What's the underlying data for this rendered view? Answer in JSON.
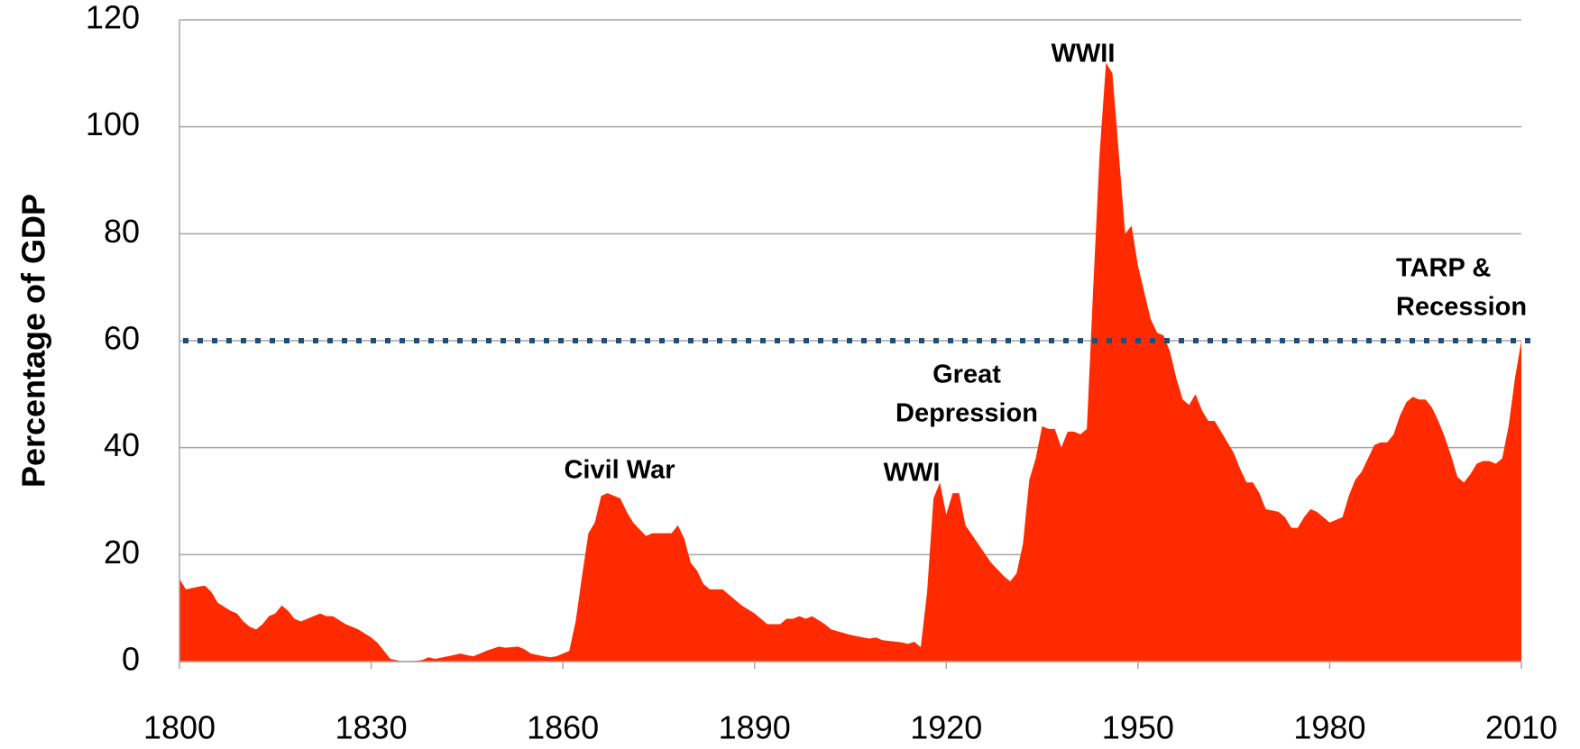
{
  "chart_data": {
    "type": "area",
    "y_label": "Percentage of GDP",
    "color": "#ff2a00",
    "x": [
      1800,
      1801,
      1803,
      1804,
      1805,
      1806,
      1808,
      1809,
      1810,
      1811,
      1812,
      1813,
      1814,
      1815,
      1816,
      1817,
      1818,
      1819,
      1820,
      1822,
      1823,
      1824,
      1826,
      1827,
      1828,
      1830,
      1831,
      1832,
      1833,
      1835,
      1836,
      1838,
      1839,
      1840,
      1842,
      1844,
      1845,
      1846,
      1848,
      1850,
      1851,
      1853,
      1854,
      1855,
      1857,
      1858,
      1859,
      1861,
      1862,
      1863,
      1864,
      1865,
      1866,
      1867,
      1868,
      1869,
      1870,
      1871,
      1873,
      1874,
      1875,
      1876,
      1877,
      1878,
      1879,
      1880,
      1881,
      1882,
      1883,
      1885,
      1886,
      1888,
      1890,
      1892,
      1893,
      1894,
      1895,
      1896,
      1897,
      1898,
      1899,
      1901,
      1902,
      1905,
      1907,
      1908,
      1909,
      1910,
      1913,
      1914,
      1915,
      1916,
      1917,
      1918,
      1919,
      1920,
      1921,
      1922,
      1923,
      1925,
      1927,
      1929,
      1930,
      1931,
      1932,
      1933,
      1934,
      1935,
      1936,
      1937,
      1938,
      1939,
      1940,
      1941,
      1942,
      1943,
      1944,
      1945,
      1946,
      1947,
      1948,
      1949,
      1950,
      1952,
      1953,
      1954,
      1955,
      1956,
      1957,
      1958,
      1959,
      1960,
      1961,
      1962,
      1963,
      1964,
      1965,
      1966,
      1967,
      1968,
      1969,
      1970,
      1972,
      1973,
      1974,
      1975,
      1976,
      1977,
      1978,
      1979,
      1980,
      1981,
      1982,
      1983,
      1984,
      1985,
      1986,
      1987,
      1988,
      1989,
      1990,
      1991,
      1992,
      1993,
      1994,
      1995,
      1996,
      1997,
      1998,
      1999,
      2000,
      2001,
      2002,
      2003,
      2004,
      2005,
      2006,
      2007,
      2008,
      2009,
      2010
    ],
    "values": [
      15.5,
      13.5,
      14,
      14.2,
      13,
      11,
      9.5,
      9,
      7.5,
      6.5,
      6,
      7,
      8.5,
      9,
      10.5,
      9.5,
      8,
      7.5,
      8,
      9,
      8.5,
      8.5,
      7,
      6.5,
      6,
      4.5,
      3.5,
      2,
      0.5,
      0,
      0,
      0.3,
      0.8,
      0.5,
      1,
      1.5,
      1.2,
      1,
      2,
      2.8,
      2.6,
      2.8,
      2.3,
      1.5,
      1,
      0.8,
      1,
      2,
      7.5,
      16,
      24,
      26,
      31,
      31.5,
      31,
      30.5,
      28,
      26,
      23.5,
      24,
      24,
      24,
      24,
      25.5,
      23,
      18.5,
      17,
      14.5,
      13.5,
      13.5,
      12.5,
      10.5,
      9,
      7,
      7,
      7,
      8,
      8,
      8.5,
      8,
      8.5,
      7,
      6,
      5,
      4.5,
      4.3,
      4.5,
      4,
      3.6,
      3.3,
      3.7,
      2.7,
      13,
      30.5,
      33.5,
      27.5,
      31.5,
      31.5,
      25.5,
      22,
      18.5,
      16,
      15,
      16.5,
      22,
      34,
      38,
      44,
      43.5,
      43.5,
      40,
      43,
      43,
      42.5,
      43.5,
      70,
      95,
      112,
      110,
      95,
      80,
      81.5,
      74,
      64,
      61.5,
      61,
      58,
      53,
      49,
      48,
      50,
      47,
      45,
      45,
      43,
      41,
      39,
      36,
      33.5,
      33.5,
      31.5,
      28.5,
      28,
      27,
      25,
      25,
      27,
      28.5,
      28,
      27,
      26,
      26.5,
      27,
      31,
      34,
      35.5,
      38,
      40.5,
      41,
      41,
      42.5,
      46,
      48.5,
      49.5,
      49,
      49,
      47.5,
      45,
      42,
      38.5,
      34.5,
      33.5,
      35,
      37,
      37.5,
      37.5,
      37,
      38,
      44,
      53,
      60
    ],
    "xlim": [
      1800,
      2010
    ],
    "xticks": [
      1800,
      1830,
      1860,
      1890,
      1920,
      1950,
      1980,
      2010
    ],
    "ylim": [
      0,
      120
    ],
    "yticks": [
      0,
      20,
      40,
      60,
      80,
      100,
      120
    ],
    "grid": true,
    "reference_line": {
      "value": 60,
      "color": "#1f4e79"
    },
    "annotations": [
      {
        "lines": [
          "Civil War"
        ]
      },
      {
        "lines": [
          "WWI"
        ]
      },
      {
        "lines": [
          "Great",
          "Depression"
        ]
      },
      {
        "lines": [
          "WWII"
        ]
      },
      {
        "lines": [
          "TARP &",
          "Recession"
        ]
      }
    ]
  }
}
